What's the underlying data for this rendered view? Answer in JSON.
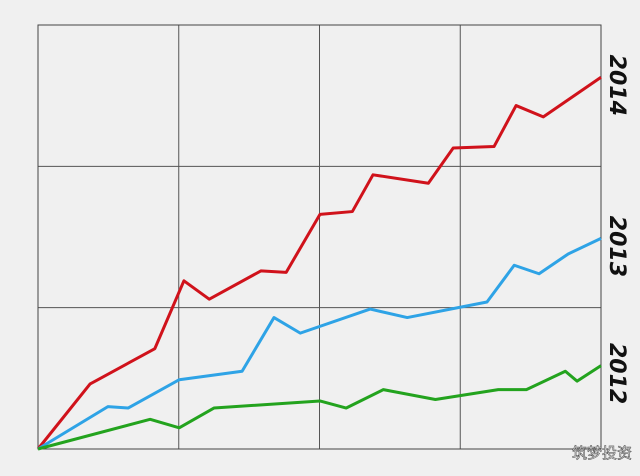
{
  "chart_data": {
    "type": "line",
    "series": [
      {
        "name": "2014",
        "color": "#d0121b",
        "x": [
          0,
          1.11,
          2.49,
          3.11,
          3.65,
          4.75,
          5.29,
          6.01,
          6.7,
          7.14,
          8.32,
          8.85,
          9.72,
          10.19,
          10.77,
          12
        ],
        "values": [
          0,
          0.46,
          0.71,
          1.19,
          1.06,
          1.26,
          1.25,
          1.66,
          1.68,
          1.94,
          1.88,
          2.13,
          2.14,
          2.43,
          2.35,
          2.63
        ]
      },
      {
        "name": "2013",
        "color": "#2ea3e6",
        "x": [
          0,
          1.49,
          1.92,
          3.01,
          4.35,
          5.03,
          5.59,
          7.08,
          7.87,
          9.57,
          10.15,
          10.68,
          11.3,
          12
        ],
        "values": [
          0,
          0.3,
          0.29,
          0.49,
          0.55,
          0.93,
          0.82,
          0.99,
          0.93,
          1.04,
          1.3,
          1.24,
          1.38,
          1.49
        ]
      },
      {
        "name": "2012",
        "color": "#23a31e",
        "x": [
          0,
          2.39,
          3.01,
          3.75,
          6.01,
          6.57,
          7.36,
          8.47,
          9.81,
          10.41,
          11.24,
          11.49,
          12
        ],
        "values": [
          0,
          0.21,
          0.15,
          0.29,
          0.34,
          0.29,
          0.42,
          0.35,
          0.42,
          0.42,
          0.55,
          0.48,
          0.59
        ]
      }
    ],
    "xlim": [
      0,
      12
    ],
    "xticks": [
      0,
      3,
      6,
      9,
      12
    ],
    "ylim": [
      0,
      3
    ],
    "yticks": [
      0,
      1,
      2,
      3
    ],
    "grid": true,
    "watermark": "筑梦投资"
  }
}
